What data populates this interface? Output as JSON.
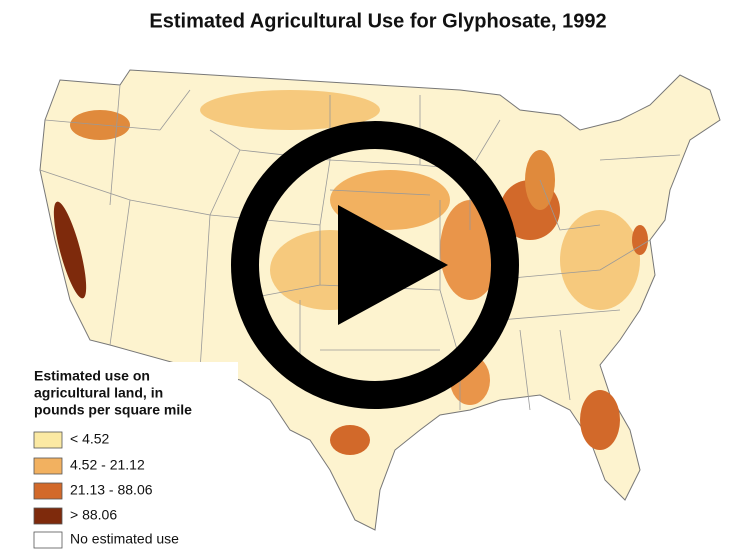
{
  "title": "Estimated Agricultural Use for Glyphosate, 1992",
  "legend": {
    "title_lines": [
      "Estimated use on",
      "agricultural land, in",
      "pounds per square mile"
    ],
    "items": [
      {
        "label": "< 4.52",
        "color": "#fbe9a3"
      },
      {
        "label": "4.52 - 21.12",
        "color": "#f2b160"
      },
      {
        "label": "21.13 - 88.06",
        "color": "#d2692a"
      },
      {
        "label": "> 88.06",
        "color": "#7e2a0c"
      },
      {
        "label": "No estimated use",
        "color": "#ffffff"
      }
    ]
  }
}
